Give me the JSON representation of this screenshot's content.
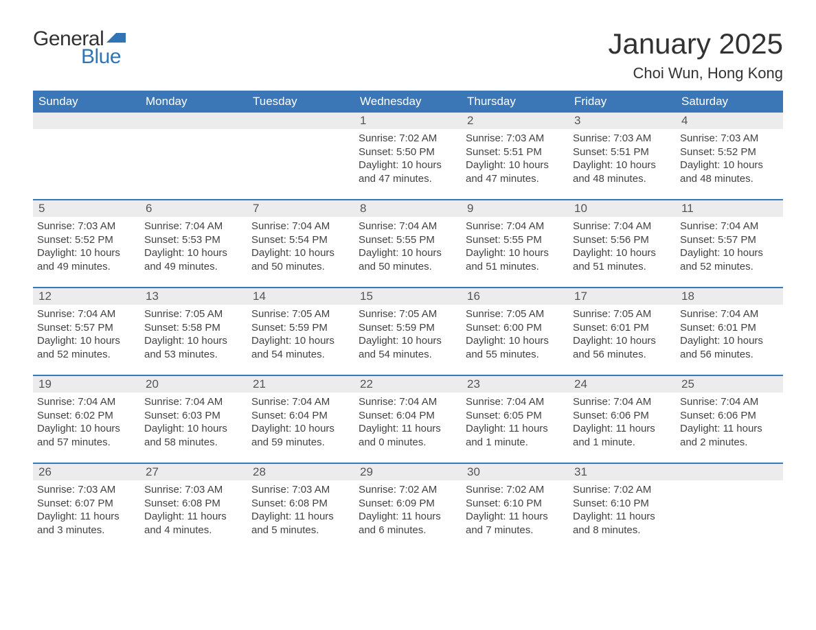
{
  "logo": {
    "text_general": "General",
    "text_blue": "Blue",
    "flag_color": "#2f74b5"
  },
  "title": "January 2025",
  "location": "Choi Wun, Hong Kong",
  "colors": {
    "header_bg": "#3b77b6",
    "header_text": "#ffffff",
    "daynum_bg": "#ececec",
    "daynum_text": "#555555",
    "body_text": "#424242",
    "rule": "#3b77b6",
    "page_bg": "#ffffff"
  },
  "typography": {
    "title_fontsize": 42,
    "location_fontsize": 22,
    "weekday_fontsize": 17,
    "daynum_fontsize": 17,
    "body_fontsize": 15,
    "font_family": "Arial"
  },
  "weekdays": [
    "Sunday",
    "Monday",
    "Tuesday",
    "Wednesday",
    "Thursday",
    "Friday",
    "Saturday"
  ],
  "weeks": [
    [
      {
        "num": "",
        "sunrise": "",
        "sunset": "",
        "daylight1": "",
        "daylight2": ""
      },
      {
        "num": "",
        "sunrise": "",
        "sunset": "",
        "daylight1": "",
        "daylight2": ""
      },
      {
        "num": "",
        "sunrise": "",
        "sunset": "",
        "daylight1": "",
        "daylight2": ""
      },
      {
        "num": "1",
        "sunrise": "Sunrise: 7:02 AM",
        "sunset": "Sunset: 5:50 PM",
        "daylight1": "Daylight: 10 hours",
        "daylight2": "and 47 minutes."
      },
      {
        "num": "2",
        "sunrise": "Sunrise: 7:03 AM",
        "sunset": "Sunset: 5:51 PM",
        "daylight1": "Daylight: 10 hours",
        "daylight2": "and 47 minutes."
      },
      {
        "num": "3",
        "sunrise": "Sunrise: 7:03 AM",
        "sunset": "Sunset: 5:51 PM",
        "daylight1": "Daylight: 10 hours",
        "daylight2": "and 48 minutes."
      },
      {
        "num": "4",
        "sunrise": "Sunrise: 7:03 AM",
        "sunset": "Sunset: 5:52 PM",
        "daylight1": "Daylight: 10 hours",
        "daylight2": "and 48 minutes."
      }
    ],
    [
      {
        "num": "5",
        "sunrise": "Sunrise: 7:03 AM",
        "sunset": "Sunset: 5:52 PM",
        "daylight1": "Daylight: 10 hours",
        "daylight2": "and 49 minutes."
      },
      {
        "num": "6",
        "sunrise": "Sunrise: 7:04 AM",
        "sunset": "Sunset: 5:53 PM",
        "daylight1": "Daylight: 10 hours",
        "daylight2": "and 49 minutes."
      },
      {
        "num": "7",
        "sunrise": "Sunrise: 7:04 AM",
        "sunset": "Sunset: 5:54 PM",
        "daylight1": "Daylight: 10 hours",
        "daylight2": "and 50 minutes."
      },
      {
        "num": "8",
        "sunrise": "Sunrise: 7:04 AM",
        "sunset": "Sunset: 5:55 PM",
        "daylight1": "Daylight: 10 hours",
        "daylight2": "and 50 minutes."
      },
      {
        "num": "9",
        "sunrise": "Sunrise: 7:04 AM",
        "sunset": "Sunset: 5:55 PM",
        "daylight1": "Daylight: 10 hours",
        "daylight2": "and 51 minutes."
      },
      {
        "num": "10",
        "sunrise": "Sunrise: 7:04 AM",
        "sunset": "Sunset: 5:56 PM",
        "daylight1": "Daylight: 10 hours",
        "daylight2": "and 51 minutes."
      },
      {
        "num": "11",
        "sunrise": "Sunrise: 7:04 AM",
        "sunset": "Sunset: 5:57 PM",
        "daylight1": "Daylight: 10 hours",
        "daylight2": "and 52 minutes."
      }
    ],
    [
      {
        "num": "12",
        "sunrise": "Sunrise: 7:04 AM",
        "sunset": "Sunset: 5:57 PM",
        "daylight1": "Daylight: 10 hours",
        "daylight2": "and 52 minutes."
      },
      {
        "num": "13",
        "sunrise": "Sunrise: 7:05 AM",
        "sunset": "Sunset: 5:58 PM",
        "daylight1": "Daylight: 10 hours",
        "daylight2": "and 53 minutes."
      },
      {
        "num": "14",
        "sunrise": "Sunrise: 7:05 AM",
        "sunset": "Sunset: 5:59 PM",
        "daylight1": "Daylight: 10 hours",
        "daylight2": "and 54 minutes."
      },
      {
        "num": "15",
        "sunrise": "Sunrise: 7:05 AM",
        "sunset": "Sunset: 5:59 PM",
        "daylight1": "Daylight: 10 hours",
        "daylight2": "and 54 minutes."
      },
      {
        "num": "16",
        "sunrise": "Sunrise: 7:05 AM",
        "sunset": "Sunset: 6:00 PM",
        "daylight1": "Daylight: 10 hours",
        "daylight2": "and 55 minutes."
      },
      {
        "num": "17",
        "sunrise": "Sunrise: 7:05 AM",
        "sunset": "Sunset: 6:01 PM",
        "daylight1": "Daylight: 10 hours",
        "daylight2": "and 56 minutes."
      },
      {
        "num": "18",
        "sunrise": "Sunrise: 7:04 AM",
        "sunset": "Sunset: 6:01 PM",
        "daylight1": "Daylight: 10 hours",
        "daylight2": "and 56 minutes."
      }
    ],
    [
      {
        "num": "19",
        "sunrise": "Sunrise: 7:04 AM",
        "sunset": "Sunset: 6:02 PM",
        "daylight1": "Daylight: 10 hours",
        "daylight2": "and 57 minutes."
      },
      {
        "num": "20",
        "sunrise": "Sunrise: 7:04 AM",
        "sunset": "Sunset: 6:03 PM",
        "daylight1": "Daylight: 10 hours",
        "daylight2": "and 58 minutes."
      },
      {
        "num": "21",
        "sunrise": "Sunrise: 7:04 AM",
        "sunset": "Sunset: 6:04 PM",
        "daylight1": "Daylight: 10 hours",
        "daylight2": "and 59 minutes."
      },
      {
        "num": "22",
        "sunrise": "Sunrise: 7:04 AM",
        "sunset": "Sunset: 6:04 PM",
        "daylight1": "Daylight: 11 hours",
        "daylight2": "and 0 minutes."
      },
      {
        "num": "23",
        "sunrise": "Sunrise: 7:04 AM",
        "sunset": "Sunset: 6:05 PM",
        "daylight1": "Daylight: 11 hours",
        "daylight2": "and 1 minute."
      },
      {
        "num": "24",
        "sunrise": "Sunrise: 7:04 AM",
        "sunset": "Sunset: 6:06 PM",
        "daylight1": "Daylight: 11 hours",
        "daylight2": "and 1 minute."
      },
      {
        "num": "25",
        "sunrise": "Sunrise: 7:04 AM",
        "sunset": "Sunset: 6:06 PM",
        "daylight1": "Daylight: 11 hours",
        "daylight2": "and 2 minutes."
      }
    ],
    [
      {
        "num": "26",
        "sunrise": "Sunrise: 7:03 AM",
        "sunset": "Sunset: 6:07 PM",
        "daylight1": "Daylight: 11 hours",
        "daylight2": "and 3 minutes."
      },
      {
        "num": "27",
        "sunrise": "Sunrise: 7:03 AM",
        "sunset": "Sunset: 6:08 PM",
        "daylight1": "Daylight: 11 hours",
        "daylight2": "and 4 minutes."
      },
      {
        "num": "28",
        "sunrise": "Sunrise: 7:03 AM",
        "sunset": "Sunset: 6:08 PM",
        "daylight1": "Daylight: 11 hours",
        "daylight2": "and 5 minutes."
      },
      {
        "num": "29",
        "sunrise": "Sunrise: 7:02 AM",
        "sunset": "Sunset: 6:09 PM",
        "daylight1": "Daylight: 11 hours",
        "daylight2": "and 6 minutes."
      },
      {
        "num": "30",
        "sunrise": "Sunrise: 7:02 AM",
        "sunset": "Sunset: 6:10 PM",
        "daylight1": "Daylight: 11 hours",
        "daylight2": "and 7 minutes."
      },
      {
        "num": "31",
        "sunrise": "Sunrise: 7:02 AM",
        "sunset": "Sunset: 6:10 PM",
        "daylight1": "Daylight: 11 hours",
        "daylight2": "and 8 minutes."
      },
      {
        "num": "",
        "sunrise": "",
        "sunset": "",
        "daylight1": "",
        "daylight2": ""
      }
    ]
  ]
}
